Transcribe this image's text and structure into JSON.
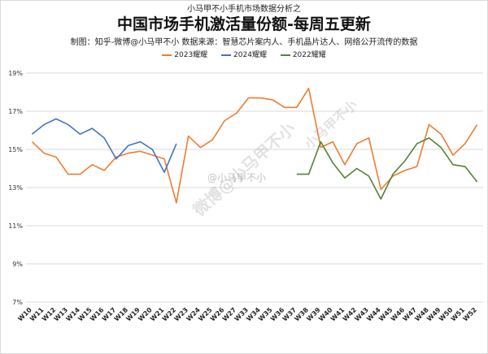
{
  "header": {
    "kicker": "小马甲不小手机市场数据分析之",
    "title": "中国市场手机激活量份额-每周五更新",
    "subtitle": "制图：知乎-微博@小马甲不小  数据来源：智慧芯片案内人、手机晶片达人、网络公开流传的数据"
  },
  "watermark": {
    "main": "微博@小马甲不小",
    "secondary": "小马甲不小",
    "center": "@小马甲不小"
  },
  "colors": {
    "s2023": "#ED7D31",
    "s2024": "#4472C4",
    "s2022": "#548235",
    "grid": "#d9d9d9"
  },
  "chart_data": {
    "type": "line",
    "title": "中国市场手机激活量份额-每周五更新",
    "categories": [
      "W10",
      "W11",
      "W12",
      "W13",
      "W14",
      "W15",
      "W16",
      "W17",
      "W18",
      "W19",
      "W20",
      "W21",
      "W22",
      "W23",
      "W24",
      "W25",
      "W26",
      "W27",
      "W33",
      "W34",
      "W35",
      "W36",
      "W37",
      "W38",
      "W39",
      "W40",
      "W41",
      "W42",
      "W43",
      "W44",
      "W45",
      "W46",
      "W47",
      "W48",
      "W49",
      "W50",
      "W51",
      "W52"
    ],
    "ylim": [
      7,
      19
    ],
    "yticks": [
      "7%",
      "9%",
      "11%",
      "13%",
      "15%",
      "17%",
      "19%"
    ],
    "ytick_values": [
      7,
      9,
      11,
      13,
      15,
      17,
      19
    ],
    "grid": true,
    "legend_position": "top",
    "series": [
      {
        "name": "2023耀耀",
        "color": "#ED7D31",
        "values": [
          15.4,
          14.8,
          14.6,
          13.7,
          13.7,
          14.2,
          13.9,
          14.6,
          14.8,
          14.9,
          14.7,
          14.5,
          12.2,
          15.7,
          15.1,
          15.5,
          16.5,
          16.9,
          17.7,
          17.7,
          17.6,
          17.2,
          17.2,
          18.2,
          15.1,
          15.4,
          14.2,
          15.3,
          15.6,
          12.9,
          13.6,
          13.9,
          14.1,
          16.3,
          15.8,
          14.7,
          15.3,
          16.3
        ]
      },
      {
        "name": "2024耀耀",
        "color": "#4472C4",
        "values": [
          15.8,
          16.3,
          16.6,
          16.3,
          15.8,
          16.1,
          15.6,
          14.5,
          15.2,
          15.4,
          15.0,
          13.8,
          15.3,
          null,
          null,
          null,
          null,
          null,
          null,
          null,
          null,
          null,
          null,
          null,
          null,
          null,
          null,
          null,
          null,
          null,
          null,
          null,
          null,
          null,
          null,
          null,
          null,
          null
        ]
      },
      {
        "name": "2022耀耀",
        "color": "#548235",
        "values": [
          null,
          null,
          null,
          null,
          null,
          null,
          null,
          null,
          null,
          null,
          null,
          null,
          null,
          null,
          null,
          null,
          null,
          null,
          null,
          null,
          null,
          null,
          13.7,
          13.7,
          15.4,
          14.3,
          13.5,
          14.0,
          13.6,
          12.4,
          13.7,
          14.4,
          15.3,
          15.6,
          15.1,
          14.2,
          14.1,
          13.3
        ]
      }
    ]
  }
}
